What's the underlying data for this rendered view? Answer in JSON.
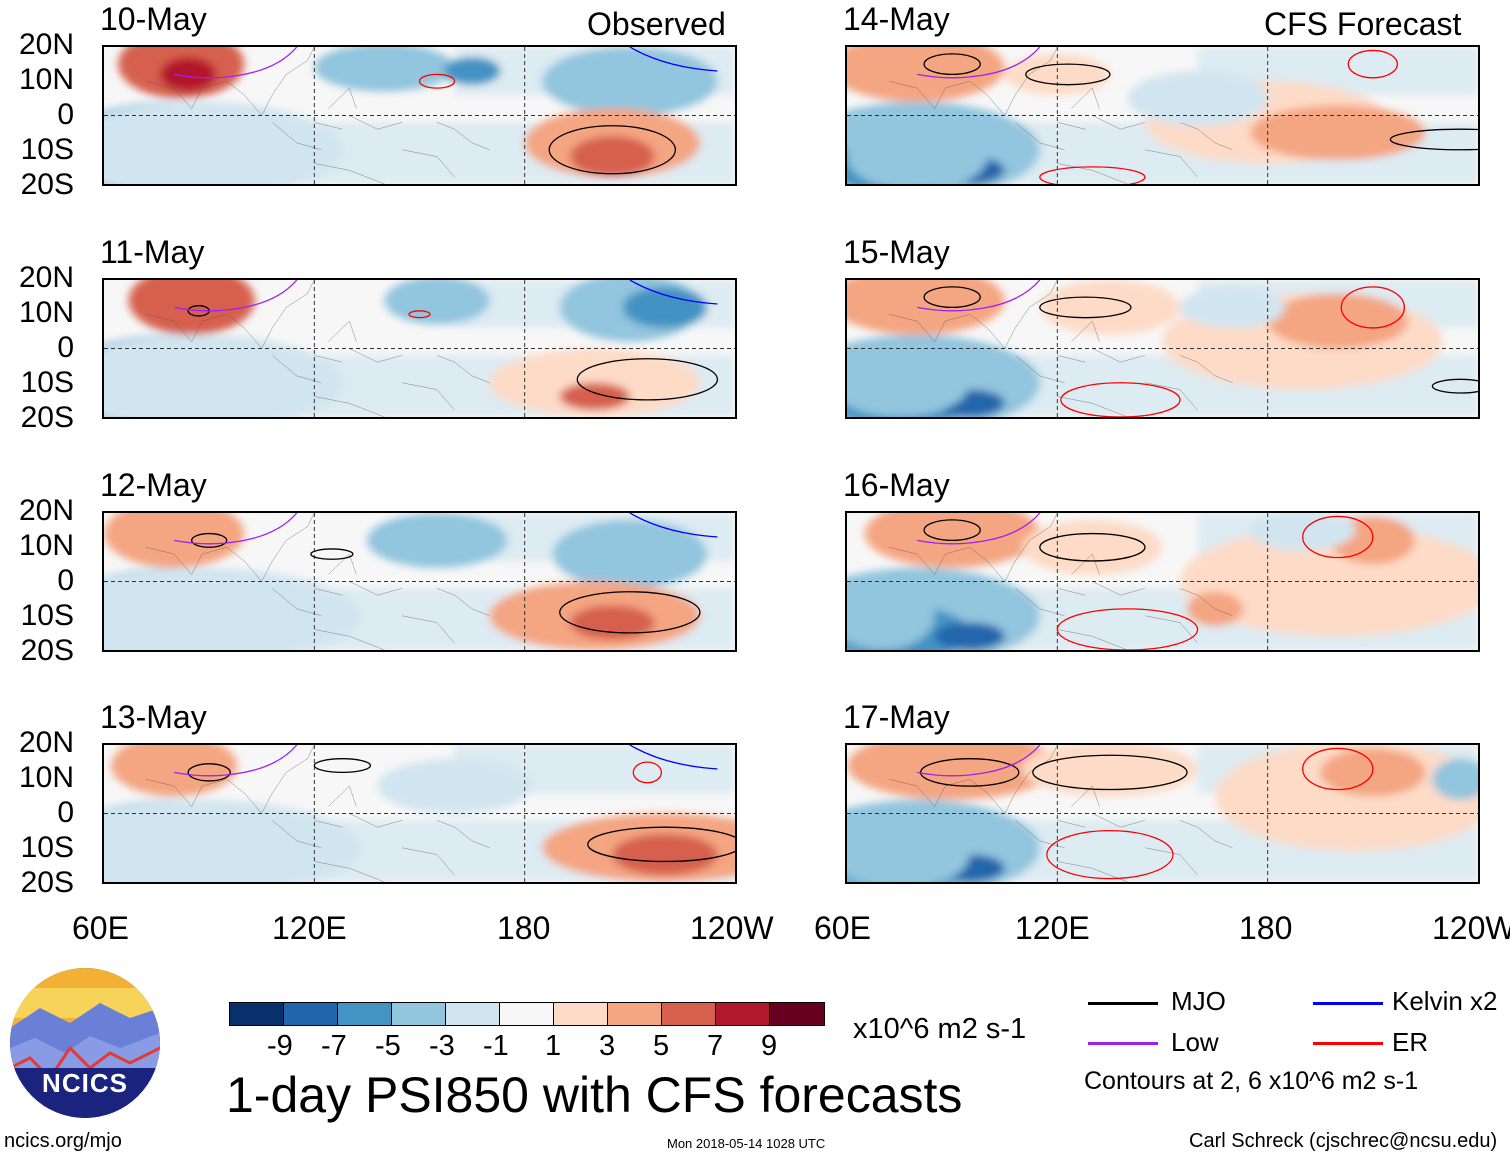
{
  "headers": {
    "left": "Observed",
    "right": "CFS Forecast"
  },
  "panels": {
    "left": [
      "10-May",
      "11-May",
      "12-May",
      "13-May"
    ],
    "right": [
      "14-May",
      "15-May",
      "16-May",
      "17-May"
    ]
  },
  "lat_ticks": [
    "20N",
    "10N",
    "0",
    "10S",
    "20S"
  ],
  "lon_ticks": [
    "60E",
    "120E",
    "180",
    "120W"
  ],
  "colorbar": {
    "colors": [
      "#08306b",
      "#2166ac",
      "#4393c3",
      "#92c5de",
      "#d1e5f0",
      "#f7f7f7",
      "#fddbc7",
      "#f4a582",
      "#d6604d",
      "#b2182b",
      "#67001f"
    ],
    "labels": [
      "-9",
      "-7",
      "-5",
      "-3",
      "-1",
      "1",
      "3",
      "5",
      "7",
      "9"
    ],
    "units": "x10^6 m2 s-1"
  },
  "title": "1-day PSI850 with CFS forecasts",
  "legend": {
    "items": [
      {
        "label": "MJO",
        "color": "#000000"
      },
      {
        "label": "Kelvin x2",
        "color": "#0000ff"
      },
      {
        "label": "Low",
        "color": "#a020f0"
      },
      {
        "label": "ER",
        "color": "#ff0000"
      }
    ],
    "note": "Contours at 2, 6 x10^6 m2 s-1"
  },
  "logo": {
    "text": "NCICS"
  },
  "footer": {
    "url": "ncics.org/mjo",
    "timestamp": "Mon 2018-05-14 1028 UTC",
    "credit": "Carl Schreck (cjschrec@ncsu.edu)"
  }
}
